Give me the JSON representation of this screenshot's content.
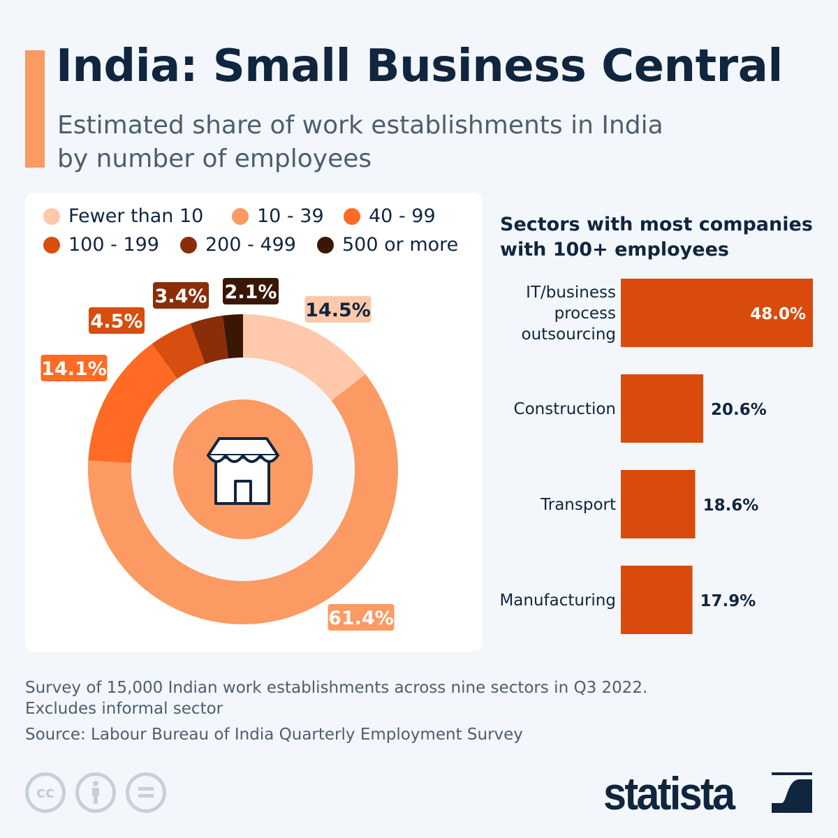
{
  "header": {
    "title": "India: Small Business Central",
    "subtitle_line1": "Estimated share of work establishments in India",
    "subtitle_line2": "by number of employees"
  },
  "chart_data": [
    {
      "type": "pie",
      "donut": true,
      "center_icon": "storefront-icon",
      "categories": [
        "Fewer than 10",
        "10-39",
        "40-99",
        "100-199",
        "200-499",
        "500 or more"
      ],
      "values": [
        14.5,
        61.4,
        14.1,
        4.5,
        3.4,
        2.1
      ],
      "labels": [
        "14.5%",
        "61.4%",
        "14.1%",
        "4.5%",
        "3.4%",
        "2.1%"
      ],
      "colors": [
        "#fdc9aa",
        "#fb9a62",
        "#ff6a24",
        "#d84d10",
        "#8a2e0a",
        "#3a1705"
      ],
      "legend": {
        "placement": "top",
        "items": [
          "Fewer than 10",
          "10 - 39",
          "40 - 99",
          "100 - 199",
          "200 - 499",
          "500 or more"
        ]
      }
    },
    {
      "type": "bar",
      "orientation": "horizontal",
      "title_line1": "Sectors with most companies",
      "title_line2": "with 100+ employees",
      "categories": [
        "IT/business process outsourcing",
        "Construction",
        "Transport",
        "Manufacturing"
      ],
      "category_lines": [
        [
          "IT/business",
          "process",
          "outsourcing"
        ],
        [
          "Construction"
        ],
        [
          "Transport"
        ],
        [
          "Manufacturing"
        ]
      ],
      "values": [
        48.0,
        20.6,
        18.6,
        17.9
      ],
      "labels": [
        "48.0%",
        "20.6%",
        "18.6%",
        "17.9%"
      ],
      "color": "#d84b0c",
      "xlim": [
        0,
        48
      ]
    }
  ],
  "footer": {
    "note_line1": "Survey of 15,000 Indian work establishments across nine sectors in Q3 2022.",
    "note_line2": "Excludes informal sector",
    "source": "Source: Labour Bureau of India Quarterly Employment Survey",
    "license_icons": [
      "cc-icon",
      "attribution-icon",
      "no-derivatives-icon"
    ],
    "cc_text": "cc",
    "logo": "statista"
  }
}
